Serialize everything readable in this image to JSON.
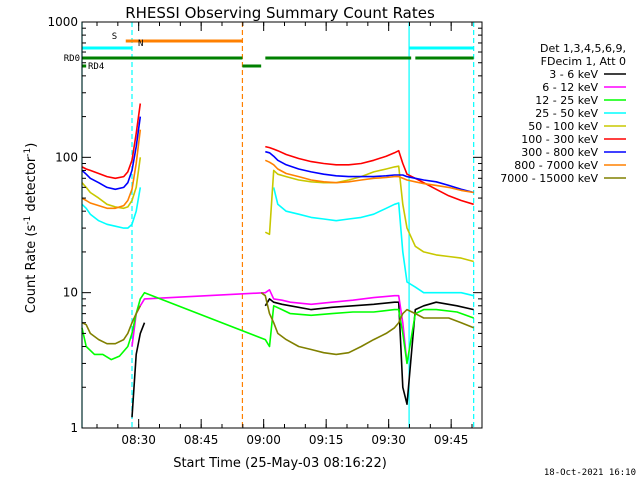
{
  "chart_data": {
    "type": "line",
    "title": "RHESSI Observing Summary Count Rates",
    "xlabel": "Start Time (25-May-03 08:16:22)",
    "ylabel_prefix": "Count Rate (s",
    "ylabel_sup": "-1",
    "ylabel_mid": " detector",
    "ylabel_sup2": "-1",
    "ylabel_suffix": ")",
    "yscale": "log",
    "ylim": [
      1,
      1000
    ],
    "xlim_minutes": [
      0,
      96
    ],
    "x_ticks": [
      {
        "label": "08:30",
        "minute": 13.6
      },
      {
        "label": "08:45",
        "minute": 28.6
      },
      {
        "label": "09:00",
        "minute": 43.6
      },
      {
        "label": "09:15",
        "minute": 58.6
      },
      {
        "label": "09:30",
        "minute": 73.6
      },
      {
        "label": "09:45",
        "minute": 88.6
      }
    ],
    "y_ticks": [
      {
        "label": "1",
        "value": 1
      },
      {
        "label": "10",
        "value": 10
      },
      {
        "label": "100",
        "value": 100
      },
      {
        "label": "1000",
        "value": 1000
      }
    ],
    "timestamp": "18-Oct-2021 16:10",
    "legend_header": [
      "Det 1,3,4,5,6,9,",
      "FDecim 1, Att 0"
    ],
    "series": [
      {
        "name": "3 - 6 keV",
        "color": "#000000",
        "x": [
          0,
          3,
          6,
          9,
          11,
          12,
          13,
          14,
          15,
          40,
          41,
          42,
          43,
          44,
          45,
          46,
          48,
          50,
          55,
          60,
          65,
          70,
          75,
          76,
          77,
          78,
          80,
          82,
          85,
          90,
          94
        ],
        "y": [
          null,
          null,
          null,
          null,
          null,
          1.2,
          3.5,
          5,
          6,
          null,
          null,
          null,
          null,
          8,
          9,
          8.5,
          8.2,
          8,
          7.5,
          7.8,
          8,
          8.2,
          8.5,
          8.5,
          2,
          1.5,
          7.5,
          8,
          8.5,
          8,
          7.5
        ]
      },
      {
        "name": "6 - 12 keV",
        "color": "#ff00ff",
        "x": [
          0,
          12,
          13,
          14,
          15,
          44,
          45,
          46,
          48,
          50,
          55,
          60,
          65,
          70,
          75,
          76,
          77,
          78,
          80,
          82
        ],
        "y": [
          null,
          4,
          7,
          8,
          9,
          10,
          10.5,
          9,
          8.8,
          8.5,
          8.2,
          8.5,
          8.8,
          9.2,
          9.5,
          9.5,
          6,
          3,
          null,
          null
        ]
      },
      {
        "name": "12 - 25 keV",
        "color": "#00ff00",
        "x": [
          0,
          1,
          3,
          5,
          7,
          9,
          11,
          12,
          13,
          14,
          15,
          44,
          45,
          46,
          48,
          50,
          55,
          60,
          65,
          70,
          75,
          76,
          77,
          78,
          80,
          82,
          85,
          90,
          94
        ],
        "y": [
          5.5,
          4,
          3.5,
          3.5,
          3.2,
          3.4,
          4,
          5,
          7,
          9,
          10,
          4.5,
          4,
          8,
          7.5,
          7,
          6.8,
          7,
          7.2,
          7.2,
          7.5,
          7.5,
          5,
          3,
          7,
          7.5,
          7.5,
          7.2,
          6.5
        ]
      },
      {
        "name": "25 - 50 keV",
        "color": "#00ffff",
        "x": [
          0,
          1,
          2,
          4,
          6,
          8,
          10,
          11,
          12,
          13,
          14,
          15,
          44,
          45,
          46,
          47,
          49,
          52,
          55,
          58,
          61,
          64,
          67,
          70,
          73,
          75,
          76,
          77,
          78,
          80,
          82,
          85,
          88,
          91,
          94
        ],
        "y": [
          45,
          42,
          38,
          34,
          32,
          31,
          30,
          30,
          32,
          40,
          60,
          null,
          null,
          null,
          60,
          45,
          40,
          38,
          36,
          35,
          34,
          35,
          36,
          38,
          42,
          45,
          46,
          20,
          12,
          11,
          10,
          10,
          10,
          10,
          9.5
        ]
      },
      {
        "name": "50 - 100 keV",
        "color": "#c8c800",
        "x": [
          0,
          1,
          2,
          4,
          6,
          8,
          10,
          11,
          12,
          13,
          14,
          15,
          44,
          45,
          46,
          47,
          49,
          52,
          55,
          58,
          61,
          64,
          67,
          70,
          73,
          75,
          76,
          77,
          78,
          80,
          82,
          85,
          88,
          91,
          94
        ],
        "y": [
          65,
          60,
          55,
          50,
          45,
          43,
          42,
          43,
          48,
          60,
          100,
          null,
          28,
          27,
          80,
          75,
          72,
          68,
          66,
          65,
          65,
          68,
          72,
          78,
          82,
          85,
          86,
          45,
          30,
          22,
          20,
          19,
          18.5,
          18,
          17
        ]
      },
      {
        "name": "100 - 300 keV",
        "color": "#ff0000",
        "x": [
          0,
          1,
          2,
          4,
          6,
          8,
          10,
          11,
          12,
          13,
          14,
          15,
          44,
          45,
          46,
          47,
          49,
          52,
          55,
          58,
          61,
          64,
          67,
          70,
          73,
          75,
          76,
          77,
          78,
          80,
          82,
          85,
          88,
          91,
          94
        ],
        "y": [
          85,
          82,
          80,
          76,
          72,
          70,
          72,
          78,
          95,
          150,
          250,
          null,
          120,
          118,
          115,
          112,
          105,
          98,
          93,
          90,
          88,
          88,
          90,
          95,
          102,
          108,
          112,
          90,
          75,
          70,
          65,
          58,
          52,
          48,
          45
        ]
      },
      {
        "name": "300 - 800 keV",
        "color": "#0000ff",
        "x": [
          0,
          1,
          2,
          4,
          6,
          8,
          10,
          11,
          12,
          13,
          14,
          15,
          44,
          45,
          46,
          47,
          49,
          52,
          55,
          58,
          61,
          64,
          67,
          70,
          73,
          75,
          76,
          77,
          78,
          80,
          82,
          85,
          88,
          91,
          94
        ],
        "y": [
          80,
          75,
          70,
          65,
          60,
          58,
          60,
          65,
          80,
          120,
          200,
          null,
          110,
          108,
          102,
          95,
          88,
          82,
          78,
          75,
          73,
          72,
          72,
          72,
          73,
          74,
          74,
          74,
          72,
          70,
          68,
          66,
          62,
          58,
          55
        ]
      },
      {
        "name": "800 - 7000 keV",
        "color": "#ff8000",
        "x": [
          0,
          1,
          2,
          4,
          6,
          8,
          10,
          11,
          12,
          13,
          14,
          15,
          44,
          45,
          46,
          47,
          49,
          52,
          55,
          58,
          61,
          64,
          67,
          70,
          73,
          75,
          76,
          77,
          78,
          80,
          82,
          85,
          88,
          91,
          94
        ],
        "y": [
          50,
          48,
          46,
          44,
          42,
          42,
          44,
          48,
          58,
          90,
          160,
          null,
          95,
          92,
          88,
          82,
          76,
          72,
          68,
          66,
          65,
          66,
          68,
          70,
          71,
          72,
          72,
          70,
          68,
          66,
          64,
          62,
          60,
          57,
          55
        ]
      },
      {
        "name": "7000 - 15000 keV",
        "color": "#808000",
        "x": [
          0,
          1,
          2,
          4,
          6,
          8,
          10,
          11,
          12,
          13,
          14,
          15,
          43,
          44,
          45,
          46,
          47,
          49,
          52,
          55,
          58,
          61,
          64,
          67,
          70,
          73,
          75,
          76,
          77,
          78,
          80,
          82,
          85,
          88,
          91,
          94
        ],
        "y": [
          6,
          5.8,
          5,
          4.5,
          4.2,
          4.2,
          4.5,
          5,
          6,
          7,
          8,
          null,
          10,
          9.5,
          7,
          6,
          5,
          4.5,
          4,
          3.8,
          3.6,
          3.5,
          3.6,
          4,
          4.5,
          5,
          5.5,
          6,
          7,
          7.5,
          7,
          6.5,
          6.5,
          6.5,
          6,
          5.5
        ]
      }
    ],
    "flags": [
      {
        "label": "S",
        "color": "#ff8000",
        "segments": [
          [
            10.5,
            38.5
          ]
        ]
      },
      {
        "label": "N",
        "color": "#00ffff",
        "segments": [
          [
            0,
            12
          ],
          [
            78.5,
            94
          ]
        ]
      },
      {
        "label": "RD0",
        "color": "#008000",
        "segments": [
          [
            0,
            38.5
          ],
          [
            38.5,
            43
          ],
          [
            44,
            79
          ],
          [
            80,
            94
          ]
        ]
      },
      {
        "label": "RD4",
        "color": "#008000",
        "segments": [
          [
            0,
            1
          ]
        ]
      }
    ],
    "saa_lines": [
      {
        "minute": 0,
        "color": "#00ffff",
        "style": "solid"
      },
      {
        "minute": 12,
        "color": "#00ffff",
        "style": "dashed"
      },
      {
        "minute": 38.5,
        "color": "#ff8000",
        "style": "dashed"
      },
      {
        "minute": 78.5,
        "color": "#00ffff",
        "style": "solid"
      },
      {
        "minute": 94,
        "color": "#00ffff",
        "style": "dashed"
      }
    ]
  }
}
